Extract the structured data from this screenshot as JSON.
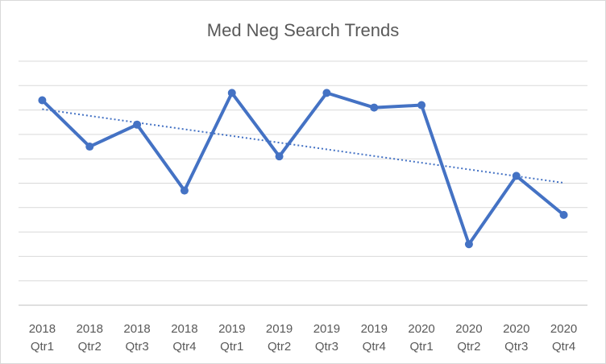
{
  "chart_data": {
    "type": "line",
    "title": "Med Neg Search Trends",
    "xlabel": "",
    "ylabel": "",
    "categories": [
      [
        "2018",
        "Qtr1"
      ],
      [
        "2018",
        "Qtr2"
      ],
      [
        "2018",
        "Qtr3"
      ],
      [
        "2018",
        "Qtr4"
      ],
      [
        "2019",
        "Qtr1"
      ],
      [
        "2019",
        "Qtr2"
      ],
      [
        "2019",
        "Qtr3"
      ],
      [
        "2019",
        "Qtr4"
      ],
      [
        "2020",
        "Qtr1"
      ],
      [
        "2020",
        "Qtr2"
      ],
      [
        "2020",
        "Qtr3"
      ],
      [
        "2020",
        "Qtr4"
      ]
    ],
    "series": [
      {
        "values": [
          8.4,
          6.5,
          7.4,
          4.7,
          8.7,
          6.1,
          8.7,
          8.1,
          8.2,
          2.5,
          5.3,
          3.7
        ],
        "color": "#4472c4",
        "trendline": "linear-dotted"
      }
    ],
    "ylim": [
      0,
      10
    ],
    "yticks_shown": false,
    "grid": "horizontal",
    "legend": "none"
  }
}
